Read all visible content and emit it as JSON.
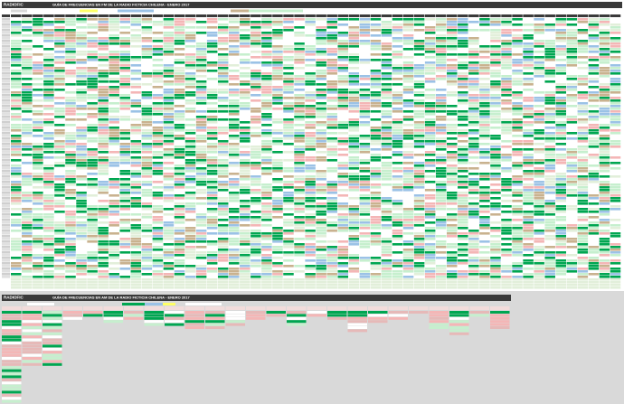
{
  "logo": {
    "text": "RADIOFIC"
  },
  "fm": {
    "title": "GUÍA DE FRECUENCIAS EN FM DE LA RADIO FICTICIA CHILENA - ENERO 2017"
  },
  "am": {
    "title": "GUÍA DE FRECUENCIAS EN AM DE LA RADIO FICTICIA CHILENA - ENERO 2017"
  }
}
